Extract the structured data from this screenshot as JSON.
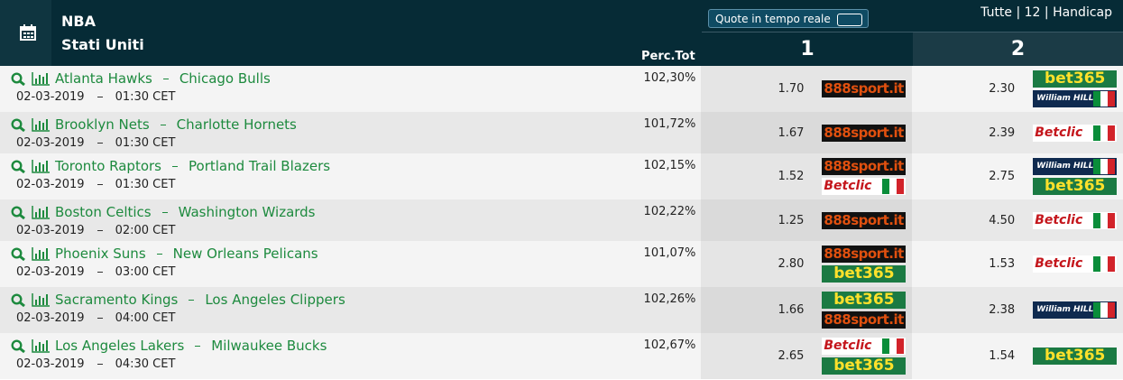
{
  "header": {
    "league": "NBA",
    "country": "Stati Uniti",
    "live_toggle": "Quote in tempo reale",
    "filter": "Tutte | 12 | Handicap",
    "perc_label": "Perc.Tot",
    "col1": "1",
    "col2": "2"
  },
  "table": {
    "rows": [
      {
        "home": "Atlanta Hawks",
        "away": "Chicago Bulls",
        "date": "02-03-2019",
        "time": "01:30 CET",
        "perc": "102,30%",
        "odds1": "1.70",
        "books1": [
          "888sport.it"
        ],
        "odds2": "2.30",
        "books2": [
          "bet365",
          "William HILL"
        ]
      },
      {
        "home": "Brooklyn Nets",
        "away": "Charlotte Hornets",
        "date": "02-03-2019",
        "time": "01:30 CET",
        "perc": "101,72%",
        "odds1": "1.67",
        "books1": [
          "888sport.it"
        ],
        "odds2": "2.39",
        "books2": [
          "Betclic"
        ]
      },
      {
        "home": "Toronto Raptors",
        "away": "Portland Trail Blazers",
        "date": "02-03-2019",
        "time": "01:30 CET",
        "perc": "102,15%",
        "odds1": "1.52",
        "books1": [
          "888sport.it",
          "Betclic"
        ],
        "odds2": "2.75",
        "books2": [
          "William HILL",
          "bet365"
        ]
      },
      {
        "home": "Boston Celtics",
        "away": "Washington Wizards",
        "date": "02-03-2019",
        "time": "02:00 CET",
        "perc": "102,22%",
        "odds1": "1.25",
        "books1": [
          "888sport.it"
        ],
        "odds2": "4.50",
        "books2": [
          "Betclic"
        ]
      },
      {
        "home": "Phoenix Suns",
        "away": "New Orleans Pelicans",
        "date": "02-03-2019",
        "time": "03:00 CET",
        "perc": "101,07%",
        "odds1": "2.80",
        "books1": [
          "888sport.it",
          "bet365"
        ],
        "odds2": "1.53",
        "books2": [
          "Betclic"
        ]
      },
      {
        "home": "Sacramento Kings",
        "away": "Los Angeles Clippers",
        "date": "02-03-2019",
        "time": "04:00 CET",
        "perc": "102,26%",
        "odds1": "1.66",
        "books1": [
          "bet365",
          "888sport.it"
        ],
        "odds2": "2.38",
        "books2": [
          "William HILL"
        ]
      },
      {
        "home": "Los Angeles Lakers",
        "away": "Milwaukee Bucks",
        "date": "02-03-2019",
        "time": "04:30 CET",
        "perc": "102,67%",
        "odds1": "2.65",
        "books1": [
          "Betclic",
          "bet365"
        ],
        "odds2": "1.54",
        "books2": [
          "bet365"
        ]
      }
    ]
  }
}
